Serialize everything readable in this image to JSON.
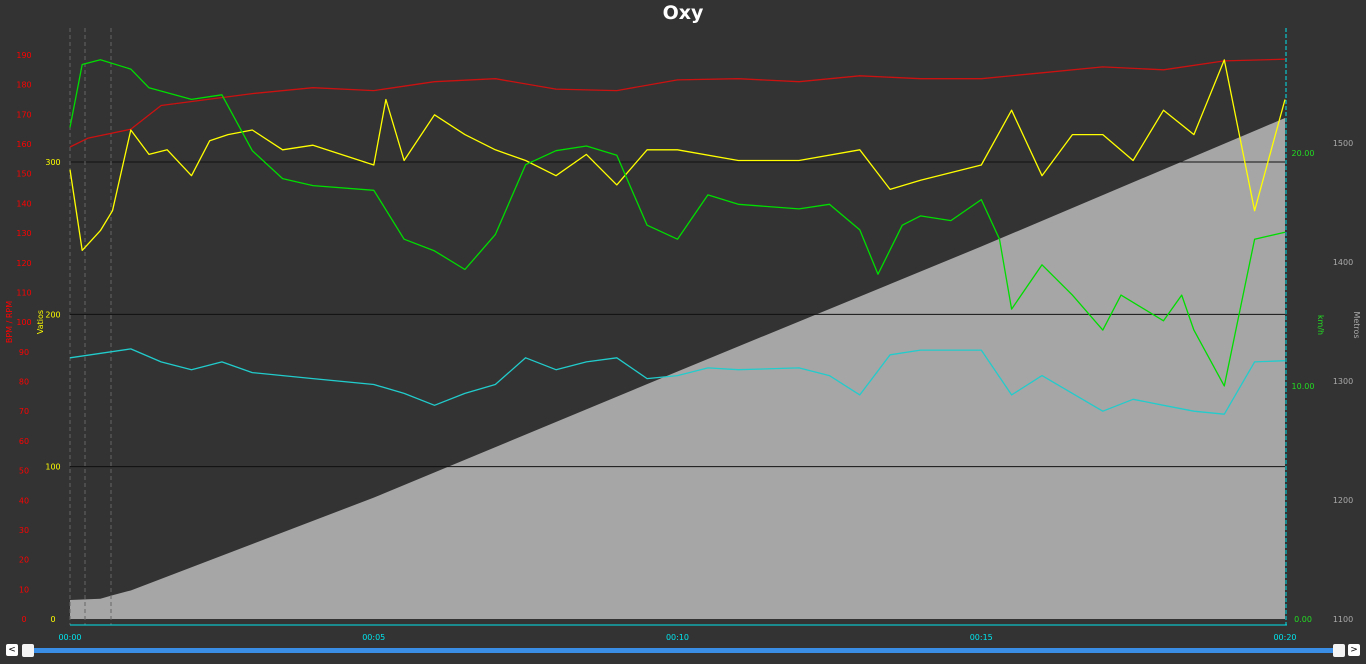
{
  "chart_data": {
    "type": "line",
    "title": "Oxy",
    "xlabel": "",
    "x_ticks": [
      "00:00",
      "00:05",
      "00:10",
      "00:15",
      "00:20"
    ],
    "xlim_minutes": [
      0,
      20
    ],
    "grid": "horizontal lines at Vatios ticks",
    "axes": [
      {
        "id": "bpm",
        "side": "left",
        "label": "BPM / RPM",
        "color": "#ff0000",
        "range": [
          0,
          190
        ],
        "ticks": [
          0,
          10,
          20,
          30,
          40,
          50,
          60,
          70,
          80,
          90,
          100,
          110,
          120,
          130,
          140,
          150,
          160,
          170,
          180,
          190
        ]
      },
      {
        "id": "watts",
        "side": "left",
        "label": "Vatios",
        "color": "#ffff00",
        "range": [
          0,
          300
        ],
        "ticks": [
          0,
          100,
          200,
          300
        ]
      },
      {
        "id": "kmh",
        "side": "right",
        "label": "km/h",
        "color": "#00ff00",
        "range": [
          0,
          20
        ],
        "ticks": [
          "0.00",
          "10.00",
          "20.00"
        ]
      },
      {
        "id": "alt",
        "side": "right",
        "label": "Metros",
        "color": "#b0b0b0",
        "range": [
          1100,
          1500
        ],
        "ticks": [
          1100,
          1200,
          1300,
          1400,
          1500
        ]
      }
    ],
    "series": [
      {
        "axis": "alt",
        "type": "area",
        "color": "#a6a6a6",
        "points": [
          [
            0,
            1116
          ],
          [
            0.5,
            1117
          ],
          [
            0.7,
            1120
          ],
          [
            1,
            1124
          ],
          [
            5,
            1202
          ],
          [
            10,
            1308
          ],
          [
            15,
            1413
          ],
          [
            20,
            1521
          ]
        ]
      },
      {
        "axis": "bpm",
        "color": "#cc1111",
        "points": [
          [
            0,
            159
          ],
          [
            0.3,
            162
          ],
          [
            1,
            165
          ],
          [
            1.5,
            173
          ],
          [
            3,
            177
          ],
          [
            4,
            179
          ],
          [
            5,
            178
          ],
          [
            6,
            181
          ],
          [
            7,
            182
          ],
          [
            8,
            178.5
          ],
          [
            9,
            178
          ],
          [
            10,
            181.6
          ],
          [
            11,
            182
          ],
          [
            12,
            181
          ],
          [
            13,
            183
          ],
          [
            14,
            182
          ],
          [
            15,
            182
          ],
          [
            16,
            184
          ],
          [
            17,
            186
          ],
          [
            18,
            185
          ],
          [
            19,
            188
          ],
          [
            20,
            188.6
          ]
        ]
      },
      {
        "axis": "watts",
        "color": "#ffff00",
        "points": [
          [
            0,
            295
          ],
          [
            0.2,
            242
          ],
          [
            0.5,
            255
          ],
          [
            0.7,
            268
          ],
          [
            1,
            321
          ],
          [
            1.3,
            305
          ],
          [
            1.6,
            308
          ],
          [
            2,
            291
          ],
          [
            2.3,
            314
          ],
          [
            2.6,
            318
          ],
          [
            3,
            321
          ],
          [
            3.5,
            308
          ],
          [
            4,
            311
          ],
          [
            5,
            298
          ],
          [
            5.2,
            341
          ],
          [
            5.5,
            301
          ],
          [
            6,
            331
          ],
          [
            6.5,
            318
          ],
          [
            7,
            308
          ],
          [
            7.5,
            301
          ],
          [
            8,
            291
          ],
          [
            8.5,
            305
          ],
          [
            9,
            285
          ],
          [
            9.5,
            308
          ],
          [
            10,
            308
          ],
          [
            11,
            301
          ],
          [
            12,
            301
          ],
          [
            13,
            308
          ],
          [
            13.5,
            282
          ],
          [
            14,
            288
          ],
          [
            15,
            298
          ],
          [
            15.5,
            334
          ],
          [
            16,
            291
          ],
          [
            16.5,
            318
          ],
          [
            17,
            318
          ],
          [
            17.5,
            301
          ],
          [
            18,
            334
          ],
          [
            18.5,
            318
          ],
          [
            19,
            367
          ],
          [
            19.5,
            268
          ],
          [
            20,
            341
          ]
        ]
      },
      {
        "axis": "kmh",
        "color": "#00dd00",
        "points": [
          [
            0,
            21.1
          ],
          [
            0.2,
            23.8
          ],
          [
            0.5,
            24
          ],
          [
            1,
            23.6
          ],
          [
            1.3,
            22.8
          ],
          [
            2,
            22.3
          ],
          [
            2.5,
            22.5
          ],
          [
            3,
            20.1
          ],
          [
            3.5,
            18.9
          ],
          [
            4,
            18.6
          ],
          [
            5,
            18.4
          ],
          [
            5.5,
            16.3
          ],
          [
            6,
            15.8
          ],
          [
            6.5,
            15
          ],
          [
            7,
            16.5
          ],
          [
            7.5,
            19.5
          ],
          [
            8,
            20.1
          ],
          [
            8.5,
            20.3
          ],
          [
            9,
            19.9
          ],
          [
            9.5,
            16.9
          ],
          [
            10,
            16.3
          ],
          [
            10.5,
            18.2
          ],
          [
            11,
            17.8
          ],
          [
            12,
            17.6
          ],
          [
            12.5,
            17.8
          ],
          [
            13,
            16.7
          ],
          [
            13.3,
            14.8
          ],
          [
            13.7,
            16.9
          ],
          [
            14,
            17.3
          ],
          [
            14.5,
            17.1
          ],
          [
            15,
            18
          ],
          [
            15.3,
            16.3
          ],
          [
            15.5,
            13.3
          ],
          [
            16,
            15.2
          ],
          [
            16.5,
            13.9
          ],
          [
            17,
            12.4
          ],
          [
            17.3,
            13.9
          ],
          [
            18,
            12.8
          ],
          [
            18.3,
            13.9
          ],
          [
            18.5,
            12.4
          ],
          [
            19,
            10
          ],
          [
            19.5,
            16.3
          ],
          [
            20,
            16.6
          ]
        ]
      },
      {
        "axis": "bpm",
        "color": "#22cccc",
        "points": [
          [
            0,
            88
          ],
          [
            1,
            91
          ],
          [
            1.5,
            86.6
          ],
          [
            2,
            84
          ],
          [
            2.5,
            86.6
          ],
          [
            3,
            83
          ],
          [
            4,
            81
          ],
          [
            5,
            79
          ],
          [
            5.5,
            76
          ],
          [
            6,
            72
          ],
          [
            6.5,
            76
          ],
          [
            7,
            79
          ],
          [
            7.5,
            88
          ],
          [
            8,
            84
          ],
          [
            8.5,
            86.6
          ],
          [
            9,
            88
          ],
          [
            9.5,
            81
          ],
          [
            10,
            82
          ],
          [
            10.5,
            84.6
          ],
          [
            11,
            84
          ],
          [
            12,
            84.6
          ],
          [
            12.5,
            82
          ],
          [
            13,
            75.5
          ],
          [
            13.5,
            89
          ],
          [
            14,
            90.6
          ],
          [
            15,
            90.6
          ],
          [
            15.5,
            75.5
          ],
          [
            16,
            82
          ],
          [
            17,
            70
          ],
          [
            17.5,
            74
          ],
          [
            18,
            72
          ],
          [
            18.5,
            70
          ],
          [
            19,
            69
          ],
          [
            19.5,
            86.6
          ],
          [
            20,
            87
          ]
        ]
      }
    ]
  },
  "scrollbar": {
    "left_label": "<",
    "right_label": ">"
  }
}
